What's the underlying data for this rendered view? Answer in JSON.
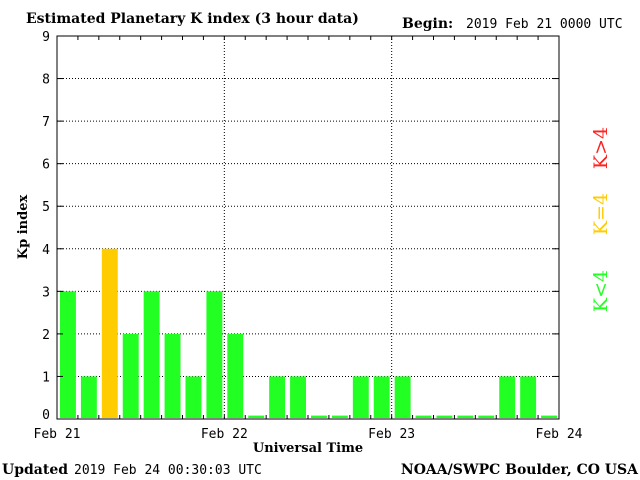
{
  "chart_data": {
    "type": "bar",
    "title": "Estimated Planetary K index (3 hour data)",
    "begin_label": "Begin:",
    "begin_value": "2019 Feb 21 0000 UTC",
    "xlabel": "Universal Time",
    "ylabel": "Kp index",
    "ylim": [
      0,
      9
    ],
    "yticks": [
      "0",
      "1",
      "2",
      "3",
      "4",
      "5",
      "6",
      "7",
      "8",
      "9"
    ],
    "xticks": [
      "Feb 21",
      "Feb 22",
      "Feb 23",
      "Feb 24"
    ],
    "bar_interval_hours": 3,
    "values": [
      3,
      1,
      4,
      2,
      3,
      2,
      1,
      3,
      2,
      0,
      1,
      1,
      0,
      0,
      1,
      1,
      1,
      0,
      0,
      0,
      0,
      1,
      1,
      0
    ],
    "colors": {
      "low": "#22ff22",
      "mid": "#ffcc00",
      "high": "#ff2222"
    },
    "legend": [
      {
        "label": "K>4",
        "color": "#ff2222"
      },
      {
        "label": "K=4",
        "color": "#ffcc00"
      },
      {
        "label": "K<4",
        "color": "#22ff22"
      }
    ],
    "grid": true
  },
  "footer": {
    "updated_label": "Updated",
    "updated_value": "2019 Feb 24 00:30:03 UTC",
    "source": "NOAA/SWPC Boulder, CO USA"
  }
}
